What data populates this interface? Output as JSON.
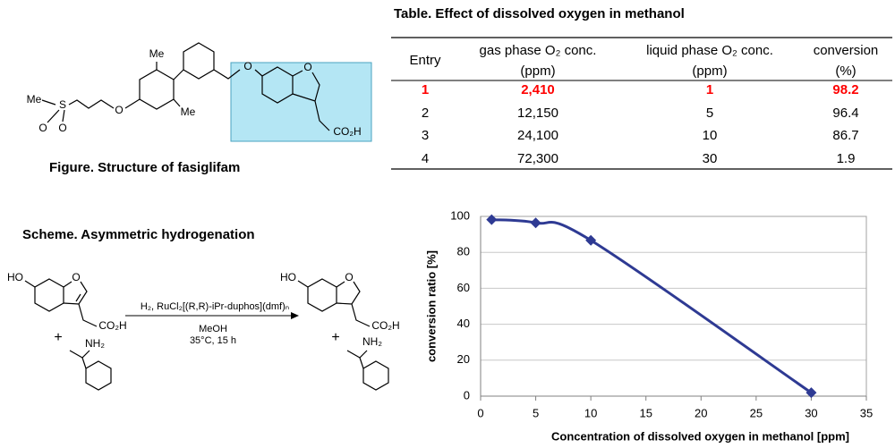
{
  "figure": {
    "caption": "Figure. Structure of fasiglifam",
    "labels": [
      "Me",
      "S",
      "O",
      "O",
      "O",
      "Me",
      "Me",
      "O",
      "O",
      "CO₂H"
    ]
  },
  "table": {
    "title": "Table. Effect of dissolved oxygen in methanol",
    "header": [
      [
        "Entry"
      ],
      [
        "gas phase O₂ conc.",
        "(ppm)"
      ],
      [
        "liquid phase O₂ conc.",
        "(ppm)"
      ],
      [
        "conversion",
        "(%)"
      ]
    ],
    "rows": [
      [
        "1",
        "2,410",
        "1",
        "98.2"
      ],
      [
        "2",
        "12,150",
        "5",
        "96.4"
      ],
      [
        "3",
        "24,100",
        "10",
        "86.7"
      ],
      [
        "4",
        "72,300",
        "30",
        "1.9"
      ]
    ],
    "highlight_row": 0,
    "highlight_color": "#ff0000"
  },
  "scheme": {
    "title": "Scheme. Asymmetric hydrogenation",
    "reactant_labels": [
      "HO",
      "O",
      "CO₂H",
      "+",
      "NH₂"
    ],
    "reagents": [
      "H₂, RuCl₂[(R,R)-iPr-duphos](dmf)ₙ",
      "MeOH",
      "35°C, 15 h"
    ],
    "product_labels": [
      "HO",
      "O",
      "CO₂H",
      "+",
      "NH₂"
    ]
  },
  "chart_data": {
    "type": "line",
    "x": [
      1,
      5,
      10,
      30
    ],
    "values": [
      98.2,
      96.4,
      86.7,
      1.9
    ],
    "color": "#2e3a93",
    "xlim": [
      0,
      35
    ],
    "xticks": [
      0,
      5,
      10,
      15,
      20,
      25,
      30,
      35
    ],
    "ylim": [
      0,
      100
    ],
    "yticks": [
      0,
      20,
      40,
      60,
      80,
      100
    ],
    "xlabel": "Concentration of dissolved  oxygen in methanol [ppm]",
    "ylabel": "conversion ratio [%]",
    "grid": true,
    "smooth": true,
    "marker": "diamond"
  }
}
